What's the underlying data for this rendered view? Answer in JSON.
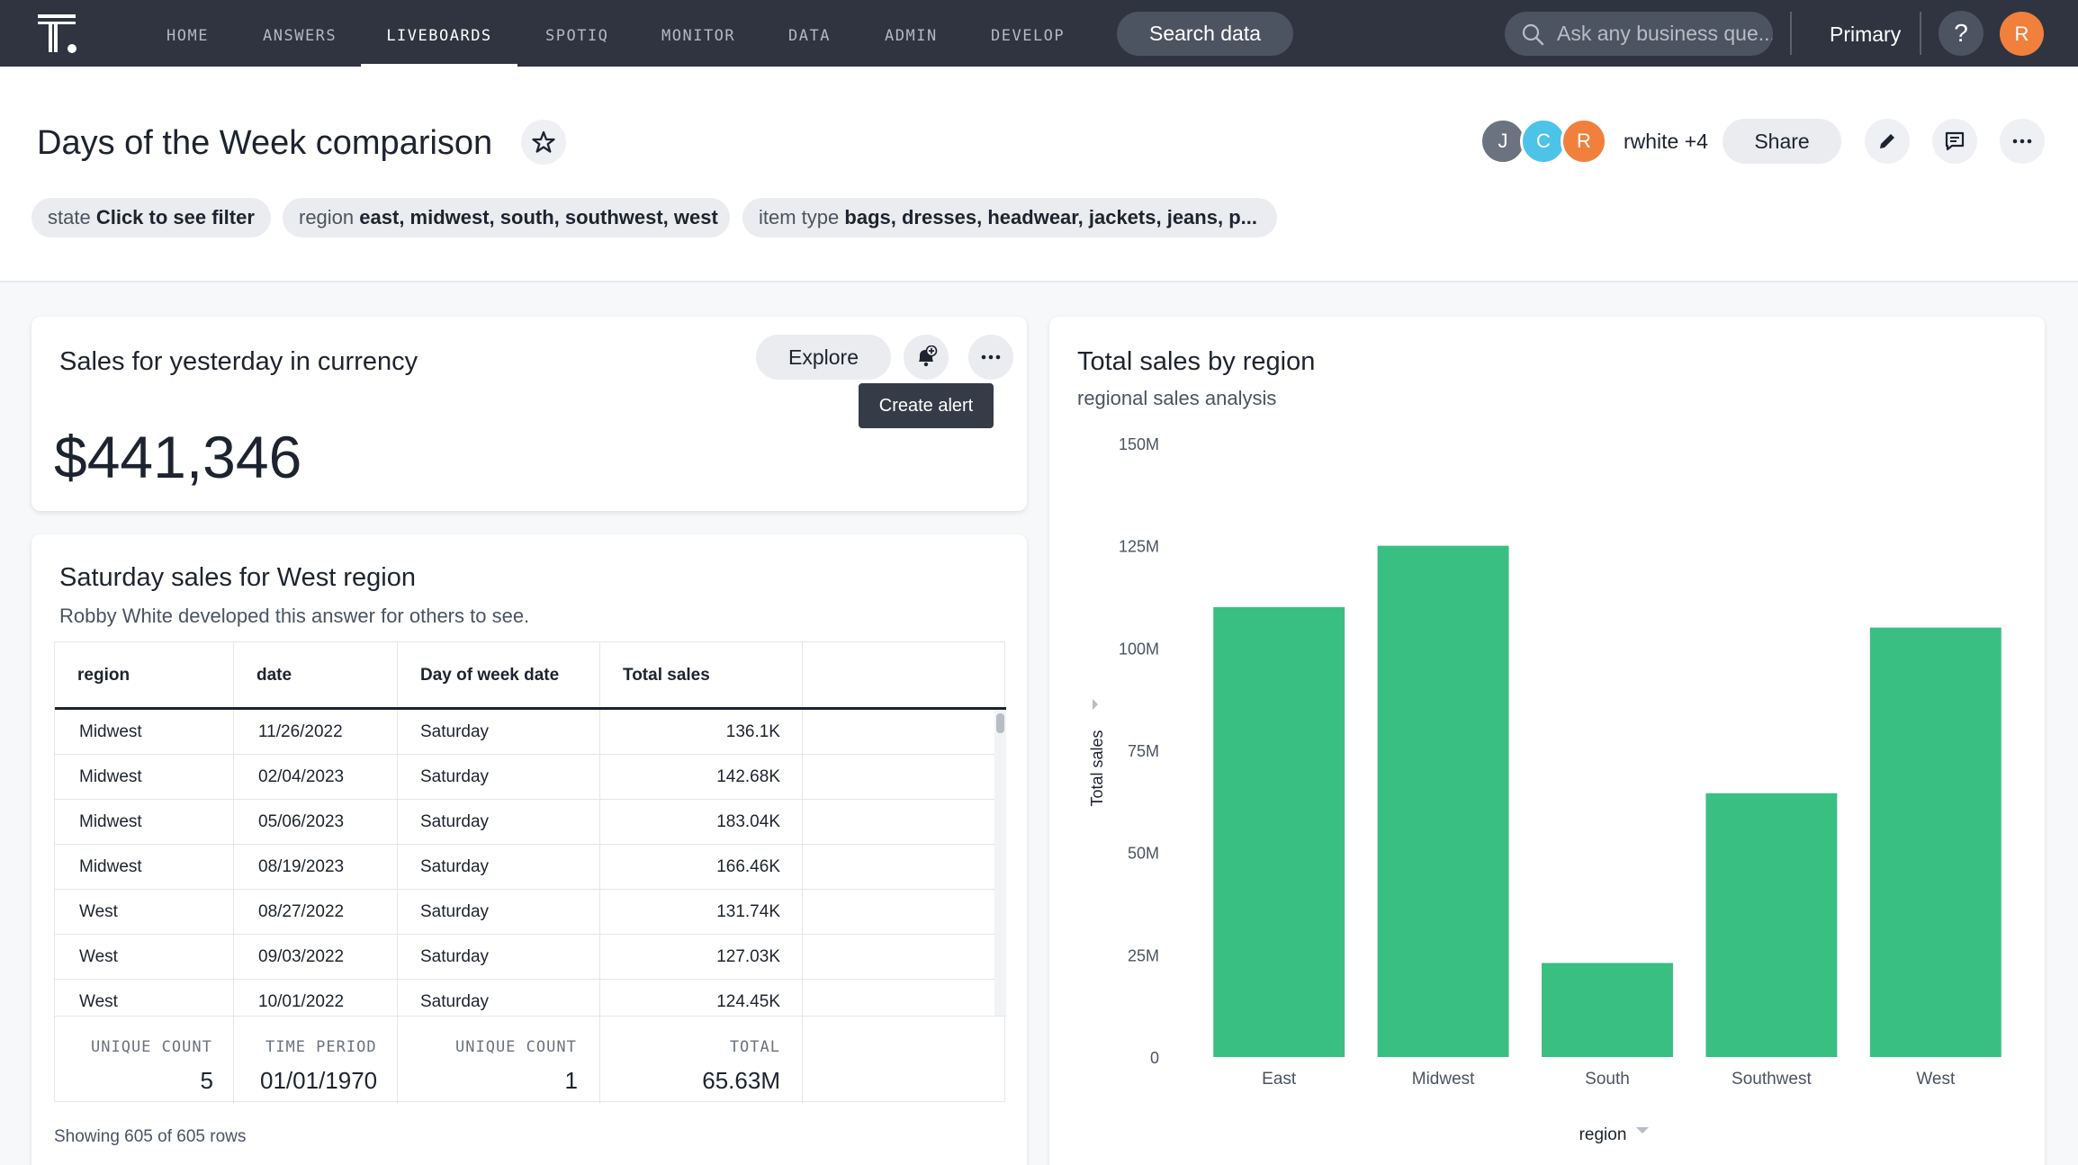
{
  "nav": {
    "items": [
      "HOME",
      "ANSWERS",
      "LIVEBOARDS",
      "SPOTIQ",
      "MONITOR",
      "DATA",
      "ADMIN",
      "DEVELOP"
    ],
    "active": "LIVEBOARDS",
    "search_data_label": "Search data",
    "ask_placeholder": "Ask any business que...",
    "org_label": "Primary",
    "help_label": "?",
    "user_initial": "R"
  },
  "header": {
    "title": "Days of the Week comparison",
    "filters": [
      {
        "key": "state",
        "value": "Click to see filter"
      },
      {
        "key": "region",
        "value": "east, midwest, south, southwest, west"
      },
      {
        "key": "item type",
        "value": "bags, dresses, headwear, jackets, jeans, p..."
      }
    ],
    "collaborators": [
      {
        "initial": "J",
        "color": "#6b7280"
      },
      {
        "initial": "C",
        "color": "#4cc3e8"
      },
      {
        "initial": "R",
        "color": "#f0803c"
      }
    ],
    "collab_text": "rwhite +4",
    "share_label": "Share"
  },
  "kpi_card": {
    "title": "Sales for yesterday in currency",
    "explore_label": "Explore",
    "tooltip": "Create alert",
    "value": "$441,346"
  },
  "table_card": {
    "title": "Saturday sales for West region",
    "subtitle": "Robby White developed this answer for others to see.",
    "columns": [
      "region",
      "date",
      "Day of week date",
      "Total sales"
    ],
    "rows": [
      [
        "Midwest",
        "11/26/2022",
        "Saturday",
        "136.1K"
      ],
      [
        "Midwest",
        "02/04/2023",
        "Saturday",
        "142.68K"
      ],
      [
        "Midwest",
        "05/06/2023",
        "Saturday",
        "183.04K"
      ],
      [
        "Midwest",
        "08/19/2023",
        "Saturday",
        "166.46K"
      ],
      [
        "West",
        "08/27/2022",
        "Saturday",
        "131.74K"
      ],
      [
        "West",
        "09/03/2022",
        "Saturday",
        "127.03K"
      ],
      [
        "West",
        "10/01/2022",
        "Saturday",
        "124.45K"
      ]
    ],
    "footer": [
      {
        "label": "UNIQUE COUNT",
        "value": "5"
      },
      {
        "label": "TIME PERIOD",
        "value": "01/01/1970"
      },
      {
        "label": "UNIQUE COUNT",
        "value": "1"
      },
      {
        "label": "TOTAL",
        "value": "65.63M"
      }
    ],
    "showing": "Showing 605 of 605 rows"
  },
  "chart_card": {
    "title": "Total sales by region",
    "subtitle": "regional sales analysis"
  },
  "chart_data": {
    "type": "bar",
    "title": "Total sales by region",
    "subtitle": "regional sales analysis",
    "categories": [
      "East",
      "Midwest",
      "South",
      "Southwest",
      "West"
    ],
    "values": [
      110,
      125,
      23,
      64.5,
      105
    ],
    "value_unit": "M",
    "ylim": [
      0,
      150
    ],
    "yticks": [
      0,
      25,
      50,
      75,
      100,
      125,
      150
    ],
    "ytick_labels": [
      "0",
      "25M",
      "50M",
      "75M",
      "100M",
      "125M",
      "150M"
    ],
    "xlabel": "region",
    "ylabel": "Total sales",
    "bar_color": "#3abf82",
    "grid": false
  },
  "colors": {
    "nav_bg": "#2f3440",
    "accent_orange": "#f0803c",
    "bar_green": "#3abf82"
  }
}
